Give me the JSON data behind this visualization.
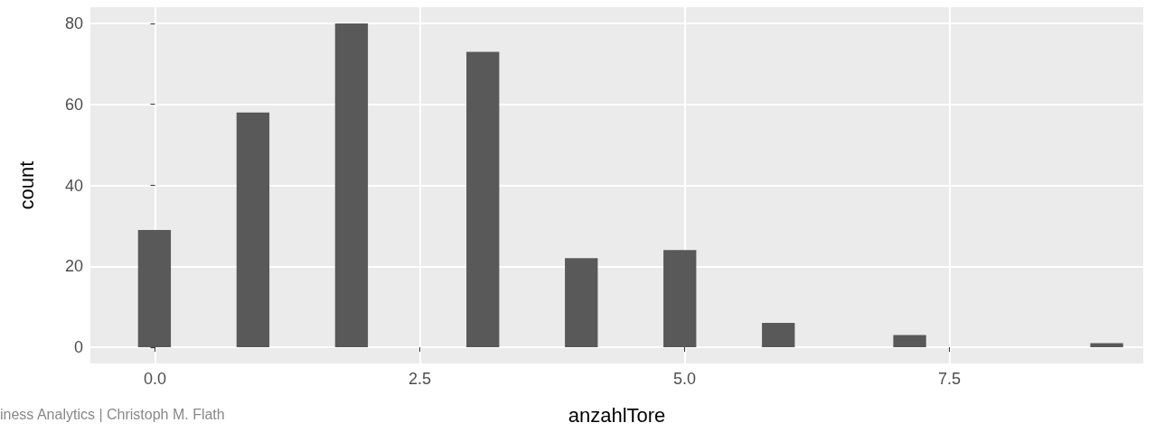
{
  "chart_data": {
    "type": "histogram",
    "xlabel": "anzahlTore",
    "ylabel": "count",
    "color": "#595959",
    "bins": [
      -0.16,
      0.15,
      0.46,
      0.77,
      1.08,
      1.39,
      1.7,
      2.01,
      2.32,
      2.63,
      2.94,
      3.25,
      3.56,
      3.87,
      4.18,
      4.49,
      4.8,
      5.11,
      5.42,
      5.73,
      6.04,
      6.35,
      6.66,
      6.97,
      7.28,
      7.59,
      7.9,
      8.21,
      8.52,
      8.83,
      9.14
    ],
    "values": [
      29,
      0,
      0,
      58,
      0,
      0,
      80,
      0,
      0,
      0,
      73,
      0,
      0,
      22,
      0,
      0,
      24,
      0,
      0,
      6,
      0,
      0,
      0,
      3,
      0,
      0,
      0,
      0,
      0,
      1
    ],
    "xlim": [
      -0.61,
      9.33
    ],
    "ylim": [
      -4,
      84
    ],
    "xticks": [
      {
        "value": 0,
        "label": "0.0"
      },
      {
        "value": 2.5,
        "label": "2.5"
      },
      {
        "value": 5,
        "label": "5.0"
      },
      {
        "value": 7.5,
        "label": "7.5"
      }
    ],
    "yticks": [
      0,
      20,
      40,
      60,
      80
    ],
    "grid": true,
    "annotations": [
      "iness Analytics | Christoph M. Flath"
    ]
  }
}
